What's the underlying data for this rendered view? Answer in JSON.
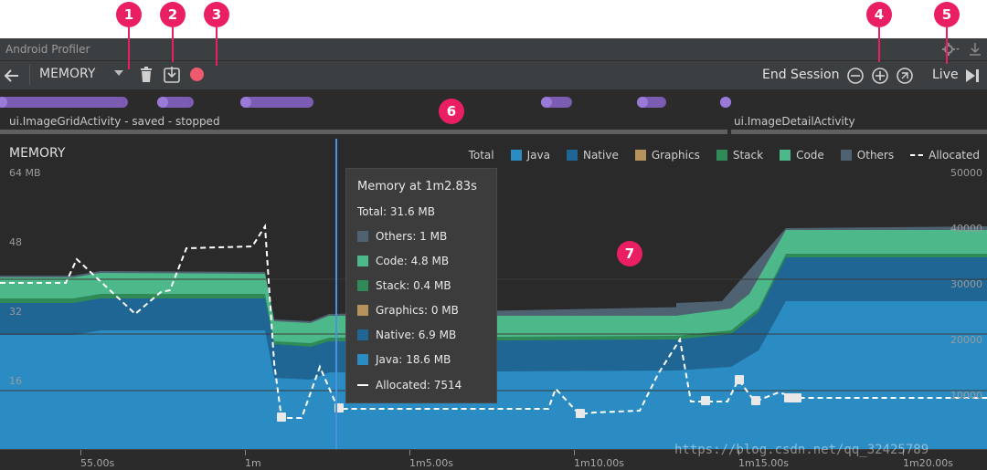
{
  "window": {
    "title": "Android Profiler"
  },
  "toolbar": {
    "profiler": "MEMORY",
    "end_session": "End Session",
    "live": "Live"
  },
  "annotations": {
    "b1": "1",
    "b2": "2",
    "b3": "3",
    "b4": "4",
    "b5": "5",
    "b6": "6",
    "b7": "7"
  },
  "events": {
    "activity1": "ui.ImageGridActivity - saved - stopped",
    "activity2": "ui.ImageDetailActivity"
  },
  "memory": {
    "title": "MEMORY",
    "legend": [
      {
        "label": "Total",
        "color": ""
      },
      {
        "label": "Java",
        "color": "#2b8cc4"
      },
      {
        "label": "Native",
        "color": "#1f6694"
      },
      {
        "label": "Graphics",
        "color": "#b5915c"
      },
      {
        "label": "Stack",
        "color": "#2f8a57"
      },
      {
        "label": "Code",
        "color": "#4db88a"
      },
      {
        "label": "Others",
        "color": "#4f6272"
      },
      {
        "label": "Allocated",
        "color": "#ffffff"
      }
    ],
    "left_axis": [
      "64 MB",
      "48",
      "32",
      "16"
    ],
    "right_axis": [
      "50000",
      "40000",
      "30000",
      "20000",
      "10000"
    ]
  },
  "tooltip": {
    "title": "Memory at 1m2.83s",
    "total": "Total: 31.6 MB",
    "rows": [
      {
        "label": "Others: 1 MB",
        "color": "#4f6272"
      },
      {
        "label": "Code: 4.8 MB",
        "color": "#4db88a"
      },
      {
        "label": "Stack: 0.4 MB",
        "color": "#2f8a57"
      },
      {
        "label": "Graphics: 0 MB",
        "color": "#b5915c"
      },
      {
        "label": "Native: 6.9 MB",
        "color": "#1f6694"
      },
      {
        "label": "Java: 18.6 MB",
        "color": "#2b8cc4"
      }
    ],
    "allocated": "Allocated: 7514"
  },
  "time_axis": [
    "55.00s",
    "1m",
    "1m5.00s",
    "1m10.00s",
    "1m15.00s",
    "1m20.00s"
  ],
  "watermark": "https://blog.csdn.net/qq_32425789"
}
